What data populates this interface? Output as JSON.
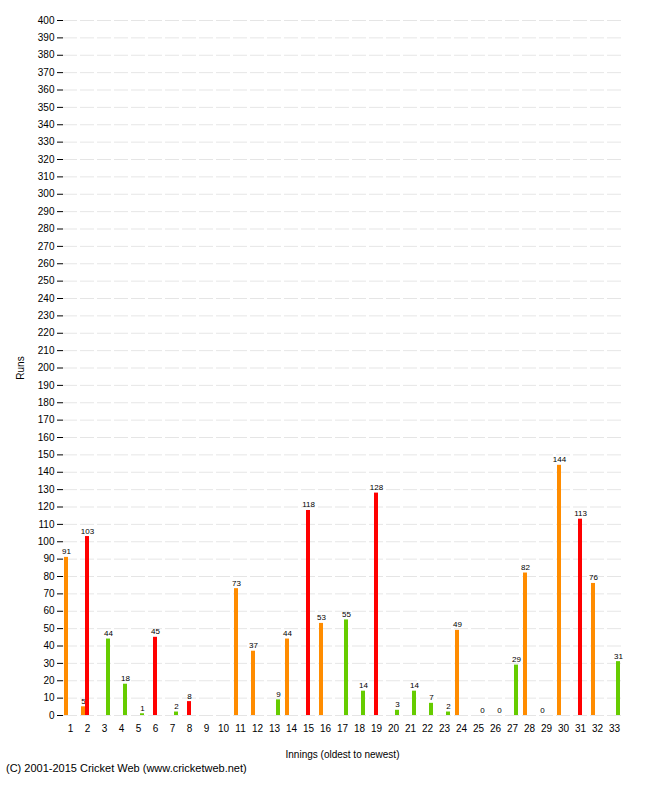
{
  "chart_data": {
    "type": "bar",
    "xlabel": "Innings (oldest to newest)",
    "ylabel": "Runs",
    "categories": [
      "1",
      "2",
      "3",
      "4",
      "5",
      "6",
      "7",
      "8",
      "9",
      "10",
      "11",
      "12",
      "13",
      "14",
      "15",
      "16",
      "17",
      "18",
      "19",
      "20",
      "21",
      "22",
      "23",
      "24",
      "25",
      "26",
      "27",
      "28",
      "29",
      "30",
      "31",
      "32",
      "33"
    ],
    "series": [
      {
        "color": "#FF8C00",
        "values": [
          91,
          5,
          0,
          0,
          0,
          0,
          0,
          0,
          0,
          0,
          73,
          37,
          0,
          44,
          0,
          53,
          0,
          0,
          0,
          0,
          0,
          0,
          0,
          49,
          0,
          0,
          0,
          82,
          0,
          144,
          0,
          76,
          0
        ],
        "value_labels": [
          "91",
          "5",
          null,
          null,
          null,
          null,
          null,
          null,
          null,
          null,
          "73",
          "37",
          null,
          "44",
          null,
          "53",
          null,
          null,
          null,
          null,
          null,
          null,
          null,
          "49",
          null,
          null,
          null,
          "82",
          "0",
          "144",
          null,
          "76",
          null
        ]
      },
      {
        "color": "#FF0000",
        "values": [
          0,
          103,
          0,
          0,
          0,
          45,
          0,
          8,
          0,
          0,
          0,
          0,
          0,
          0,
          118,
          0,
          0,
          0,
          128,
          0,
          0,
          0,
          0,
          0,
          0,
          0,
          0,
          0,
          0,
          0,
          113,
          0,
          0
        ],
        "value_labels": [
          null,
          "103",
          null,
          null,
          null,
          "45",
          null,
          "8",
          null,
          null,
          null,
          null,
          null,
          null,
          "118",
          null,
          null,
          null,
          "128",
          null,
          null,
          null,
          null,
          null,
          null,
          null,
          null,
          null,
          null,
          null,
          "113",
          null,
          null
        ]
      },
      {
        "color": "#66CC00",
        "values": [
          0,
          0,
          44,
          18,
          1,
          0,
          2,
          0,
          0,
          0,
          0,
          0,
          9,
          0,
          0,
          0,
          55,
          14,
          0,
          3,
          14,
          7,
          2,
          0,
          0,
          0,
          29,
          0,
          0,
          0,
          0,
          0,
          31
        ],
        "value_labels": [
          null,
          null,
          "44",
          "18",
          "1",
          null,
          "2",
          null,
          null,
          null,
          null,
          null,
          "9",
          null,
          null,
          null,
          "55",
          "14",
          null,
          "3",
          "14",
          "7",
          "2",
          null,
          "0",
          "0",
          "29",
          null,
          null,
          null,
          null,
          null,
          "31"
        ]
      }
    ],
    "ylim": [
      0,
      400
    ],
    "yticks": [
      0,
      10,
      20,
      30,
      40,
      50,
      60,
      70,
      80,
      90,
      100,
      110,
      120,
      130,
      140,
      150,
      160,
      170,
      180,
      190,
      200,
      210,
      220,
      230,
      240,
      250,
      260,
      270,
      280,
      290,
      300,
      310,
      320,
      330,
      340,
      350,
      360,
      370,
      380,
      390,
      400
    ],
    "grid": true,
    "data_labels": true,
    "annotations": [
      "(C) 2001-2015 Cricket Web (www.cricketweb.net)"
    ]
  }
}
